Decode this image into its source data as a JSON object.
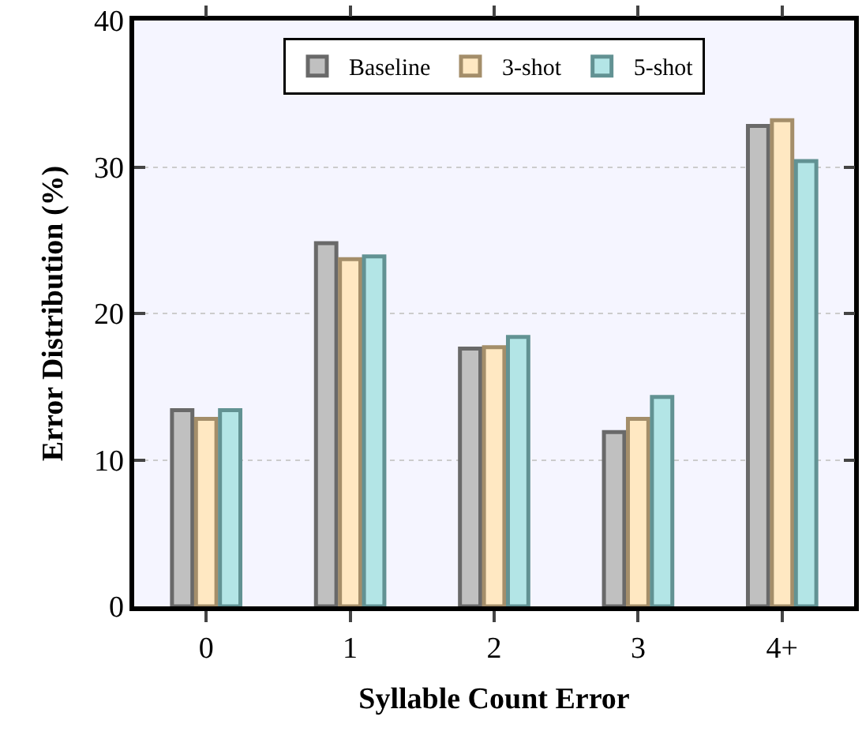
{
  "chart_data": {
    "type": "bar",
    "xlabel": "Syllable Count Error",
    "ylabel": "Error Distribution (%)",
    "categories": [
      "0",
      "1",
      "2",
      "3",
      "4+"
    ],
    "series": [
      {
        "name": "Baseline",
        "color": "#c0c0c0",
        "values": [
          13.4,
          24.8,
          17.6,
          11.9,
          32.8
        ]
      },
      {
        "name": "3-shot",
        "color": "#ffe8c2",
        "values": [
          12.8,
          23.7,
          17.7,
          12.8,
          33.2
        ]
      },
      {
        "name": "5-shot",
        "color": "#b3e5e6",
        "values": [
          13.4,
          23.9,
          18.4,
          14.3,
          30.4
        ]
      }
    ],
    "ylim": [
      0,
      40
    ],
    "yticks": [
      0,
      10,
      20,
      30,
      40
    ],
    "grid": "y",
    "legend": "top"
  }
}
